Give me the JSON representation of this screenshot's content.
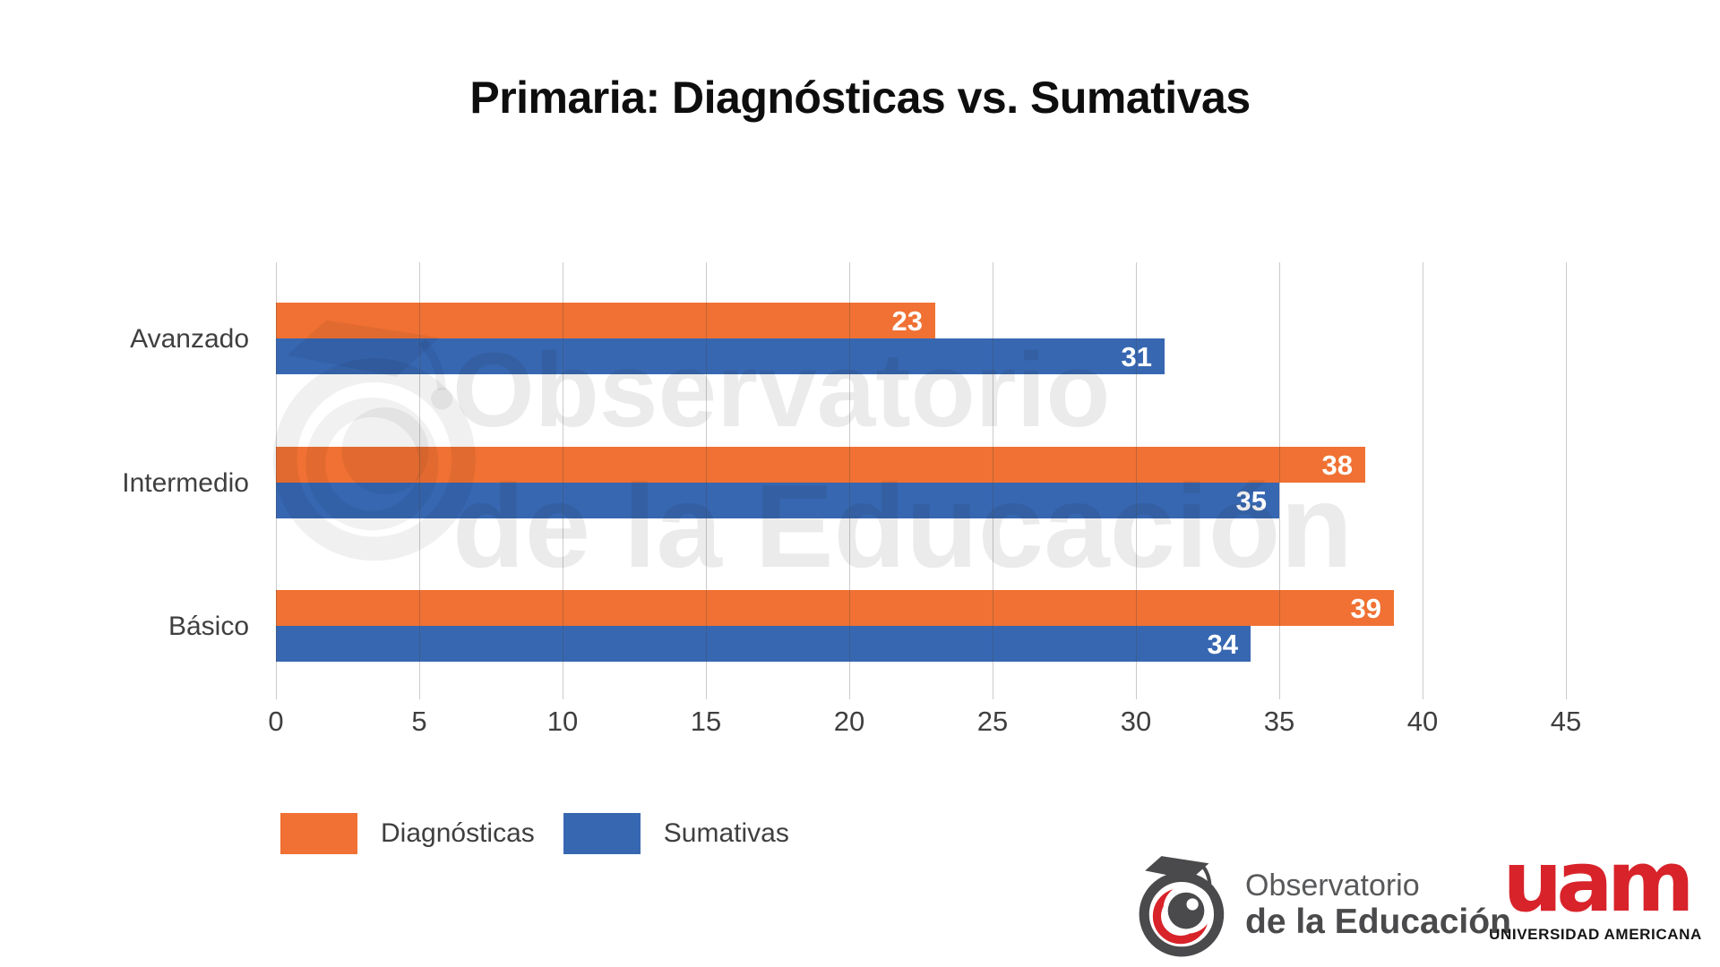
{
  "title": "Primaria: Diagnósticas vs. Sumativas",
  "chart_data": {
    "type": "bar",
    "orientation": "horizontal",
    "title": "Primaria: Diagnósticas vs. Sumativas",
    "categories": [
      "Avanzado",
      "Intermedio",
      "Básico"
    ],
    "series": [
      {
        "name": "Diagnósticas",
        "color": "#f07133",
        "values": [
          23,
          38,
          39
        ]
      },
      {
        "name": "Sumativas",
        "color": "#3767b1",
        "values": [
          31,
          35,
          34
        ]
      }
    ],
    "xlabel": "",
    "ylabel": "",
    "xlim": [
      0,
      45
    ],
    "xticks": [
      0,
      5,
      10,
      15,
      20,
      25,
      30,
      35,
      40,
      45
    ],
    "grid": "vertical-gridlines-on",
    "legend_position": "bottom-left",
    "value_labels": "inside-end-white-bold"
  },
  "watermark": {
    "line1": "Observatorio",
    "line2": "de la Educación"
  },
  "footer": {
    "observatorio": {
      "line1": "Observatorio",
      "line2": "de la Educación"
    },
    "uam": {
      "wordmark": "uam",
      "subtitle": "UNIVERSIDAD AMERICANA"
    }
  },
  "colors": {
    "diagnosticas_orange": "#f07133",
    "sumativas_blue": "#3767b1",
    "uam_red": "#d8232a",
    "logo_gray": "#58595b",
    "logo_dark": "#4a4a4c",
    "axis_text": "#3f3f3f"
  }
}
